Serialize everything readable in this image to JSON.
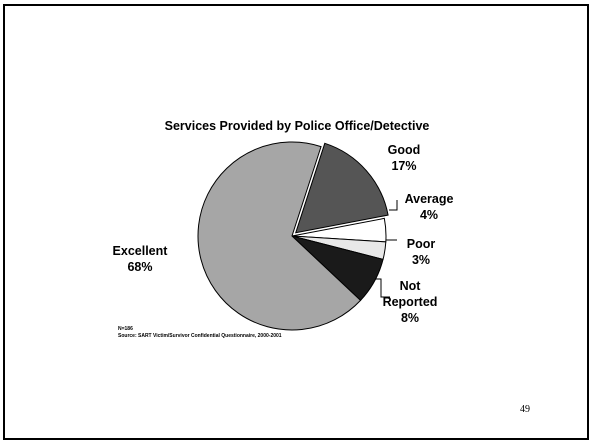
{
  "slide": {
    "page_number": "49"
  },
  "chart_data": {
    "type": "pie",
    "title": "Services Provided by Police Office/Detective",
    "slices": [
      {
        "category": "Excellent",
        "label_lines": [
          "Excellent"
        ],
        "percent_label": "68%",
        "value": 68,
        "color": "#a6a6a6"
      },
      {
        "category": "Good",
        "label_lines": [
          "Good"
        ],
        "percent_label": "17%",
        "value": 17,
        "color": "#555555"
      },
      {
        "category": "Average",
        "label_lines": [
          "Average"
        ],
        "percent_label": "4%",
        "value": 4,
        "color": "#ffffff"
      },
      {
        "category": "Poor",
        "label_lines": [
          "Poor"
        ],
        "percent_label": "3%",
        "value": 3,
        "color": "#e8e8e8"
      },
      {
        "category": "Not Reported",
        "label_lines": [
          "Not",
          "Reported"
        ],
        "percent_label": "8%",
        "value": 8,
        "color": "#1a1a1a"
      }
    ],
    "notes": [
      "N=186",
      "Source: SART Victim/Survivor Confidential Questionnaire, 2000-2001"
    ]
  }
}
